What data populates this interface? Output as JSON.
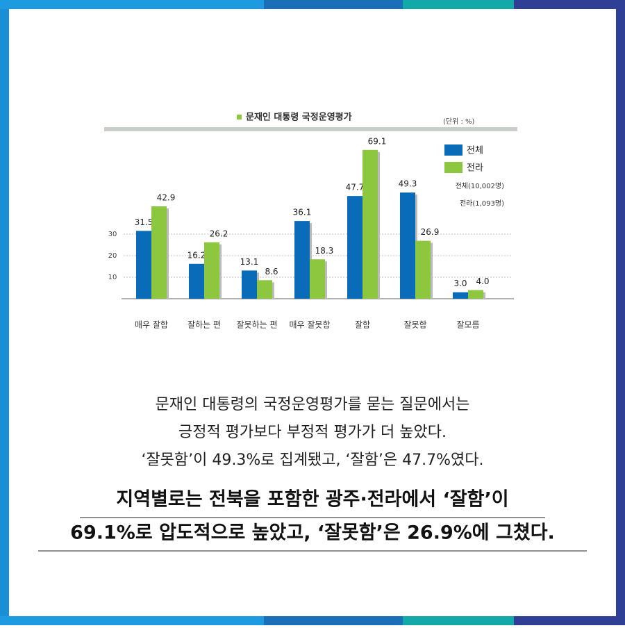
{
  "chart_data": {
    "type": "bar",
    "title": "문재인 대통령 국정운영평가",
    "unit": "(단위 : %)",
    "categories": [
      "매우 잘함",
      "잘하는 편",
      "잘못하는 편",
      "매우 잘못함",
      "잘함",
      "잘못함",
      "잘모름"
    ],
    "series": [
      {
        "name": "전체",
        "color": "#0a6cb8",
        "values": [
          31.5,
          16.2,
          13.1,
          36.1,
          47.7,
          49.3,
          3.0
        ],
        "value_labels": [
          "31.5",
          "16.2",
          "13.1",
          "36.1",
          "47.7",
          "49.3",
          "3.0"
        ]
      },
      {
        "name": "전라",
        "color": "#8dc63f",
        "values": [
          42.9,
          26.2,
          8.6,
          18.3,
          69.1,
          26.9,
          4.0
        ],
        "value_labels": [
          "42.9",
          "26.2",
          "8.6",
          "18.3",
          "69.1",
          "26.9",
          "4.0"
        ]
      }
    ],
    "ylim": [
      0,
      70
    ],
    "yticks": [
      10,
      20,
      30
    ],
    "grid": true,
    "legend": "upper right",
    "notes": [
      "전체(10,002명)",
      "전라(1,093명)"
    ]
  },
  "body": {
    "lines": [
      "문재인 대통령의 국정운영평가를 묻는 질문에서는",
      "긍정적 평가보다 부정적 평가가 더 높았다.",
      "‘잘못함’이 49.3%로 집계됐고, ‘잘함’은 47.7%였다."
    ],
    "highlight": [
      "지역별로는 전북을 포함한 광주·전라에서 ‘잘함’이",
      "69.1%로 압도적으로 높았고, ‘잘못함’은 26.9%에 그쳤다."
    ]
  }
}
